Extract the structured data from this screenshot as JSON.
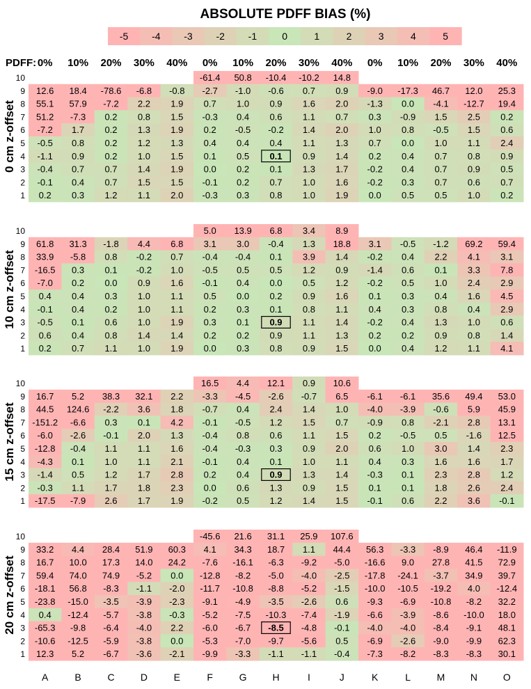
{
  "chart_data": {
    "type": "heatmap",
    "title": "ABSOLUTE PDFF BIAS (%)",
    "colors": {
      "min": "#ffb4b4",
      "mid": "#c8e6b8",
      "max": "#ffb4b4"
    },
    "color_scale": {
      "ticks": [
        "-5",
        "-4",
        "-3",
        "-2",
        "-1",
        "0",
        "1",
        "2",
        "3",
        "4",
        "5"
      ],
      "range": [
        -5,
        5
      ]
    },
    "pdff_label": "PDFF:",
    "pdff_values": [
      "0%",
      "10%",
      "20%",
      "30%",
      "40%",
      "0%",
      "10%",
      "20%",
      "30%",
      "40%",
      "0%",
      "10%",
      "20%",
      "30%",
      "40%"
    ],
    "columns": [
      "A",
      "B",
      "C",
      "D",
      "E",
      "F",
      "G",
      "H",
      "I",
      "J",
      "K",
      "L",
      "M",
      "N",
      "O"
    ],
    "row_labels": [
      "10",
      "9",
      "8",
      "7",
      "6",
      "5",
      "4",
      "3",
      "2",
      "1"
    ],
    "panels": [
      {
        "ylabel": "0 cm z-offset",
        "highlight_label": "0.1",
        "values": [
          [
            null,
            null,
            null,
            null,
            null,
            -61.4,
            50.8,
            -10.4,
            -10.2,
            14.8,
            null,
            null,
            null,
            null,
            null
          ],
          [
            12.6,
            18.4,
            -78.6,
            -6.8,
            -0.8,
            -2.7,
            -1.0,
            -0.6,
            0.7,
            0.9,
            -9.0,
            -17.3,
            46.7,
            12.0,
            25.3
          ],
          [
            55.1,
            57.9,
            -7.2,
            2.2,
            1.9,
            0.7,
            1.0,
            0.9,
            1.6,
            2.0,
            -1.3,
            0.0,
            -4.1,
            -12.7,
            19.4
          ],
          [
            51.2,
            -7.3,
            0.2,
            0.8,
            1.5,
            -0.3,
            0.4,
            0.6,
            1.1,
            0.7,
            0.3,
            -0.9,
            1.5,
            2.5,
            0.2
          ],
          [
            -7.2,
            1.7,
            0.2,
            1.3,
            1.9,
            0.2,
            -0.5,
            -0.2,
            1.4,
            2.0,
            1.0,
            0.8,
            -0.5,
            1.5,
            0.6
          ],
          [
            -0.5,
            0.8,
            0.2,
            1.2,
            1.3,
            0.4,
            0.4,
            0.4,
            1.1,
            1.3,
            0.7,
            0.0,
            1.0,
            1.1,
            2.4
          ],
          [
            -1.1,
            0.9,
            0.2,
            1.0,
            1.5,
            0.1,
            0.5,
            0.1,
            0.9,
            1.4,
            0.2,
            0.4,
            0.7,
            0.8,
            0.9
          ],
          [
            -0.4,
            0.7,
            0.7,
            1.4,
            1.9,
            0.0,
            0.2,
            0.1,
            1.3,
            1.7,
            -0.2,
            0.4,
            0.7,
            0.9,
            0.5
          ],
          [
            -0.1,
            0.4,
            0.7,
            1.5,
            1.5,
            -0.1,
            0.2,
            0.7,
            1.0,
            1.6,
            -0.2,
            0.3,
            0.7,
            0.6,
            0.7
          ],
          [
            0.2,
            0.3,
            1.2,
            1.1,
            2.0,
            -0.3,
            0.3,
            0.8,
            1.0,
            1.9,
            0.0,
            0.5,
            0.5,
            1.0,
            0.2
          ]
        ]
      },
      {
        "ylabel": "10 cm z-offset",
        "highlight_label": "0.9",
        "values": [
          [
            null,
            null,
            null,
            null,
            null,
            5.0,
            13.9,
            6.8,
            3.4,
            8.9,
            null,
            null,
            null,
            null,
            null
          ],
          [
            61.8,
            31.3,
            -1.8,
            4.4,
            6.8,
            3.1,
            3.0,
            -0.4,
            1.3,
            18.8,
            3.1,
            -0.5,
            -1.2,
            69.2,
            59.4
          ],
          [
            33.9,
            -5.8,
            0.8,
            -0.2,
            0.7,
            -0.4,
            -0.4,
            0.1,
            3.9,
            1.4,
            -0.2,
            0.4,
            2.2,
            4.1,
            3.1
          ],
          [
            -16.5,
            0.3,
            0.1,
            -0.2,
            1.0,
            -0.5,
            0.5,
            0.5,
            1.2,
            0.9,
            -1.4,
            0.6,
            0.1,
            3.3,
            7.8
          ],
          [
            -7.0,
            0.2,
            0.0,
            0.9,
            1.6,
            -0.1,
            0.4,
            0.0,
            0.5,
            1.2,
            -0.2,
            0.5,
            1.0,
            2.4,
            2.9
          ],
          [
            0.4,
            0.4,
            0.3,
            1.0,
            1.1,
            0.5,
            0.0,
            0.2,
            0.9,
            1.6,
            0.1,
            0.3,
            0.4,
            1.6,
            4.5
          ],
          [
            -0.1,
            0.4,
            0.2,
            1.0,
            1.1,
            0.2,
            0.3,
            0.1,
            0.8,
            1.1,
            0.4,
            0.3,
            0.8,
            0.4,
            2.9
          ],
          [
            -0.5,
            0.1,
            0.6,
            1.0,
            1.9,
            0.3,
            0.1,
            0.9,
            1.1,
            1.4,
            -0.2,
            0.4,
            1.3,
            1.0,
            0.6
          ],
          [
            0.6,
            0.4,
            0.8,
            1.4,
            1.4,
            0.2,
            0.2,
            0.9,
            1.1,
            1.3,
            0.2,
            0.2,
            0.9,
            0.8,
            1.4
          ],
          [
            0.2,
            0.7,
            1.1,
            1.0,
            1.9,
            0.0,
            0.3,
            0.8,
            0.9,
            1.5,
            0.0,
            0.4,
            1.2,
            1.1,
            4.1
          ]
        ]
      },
      {
        "ylabel": "15 cm z-offset",
        "highlight_label": "0.9",
        "values": [
          [
            null,
            null,
            null,
            null,
            null,
            16.5,
            4.4,
            12.1,
            0.9,
            10.6,
            null,
            null,
            null,
            null,
            null
          ],
          [
            16.7,
            5.2,
            38.3,
            32.1,
            2.2,
            -3.3,
            -4.5,
            -2.6,
            -0.7,
            6.5,
            -6.1,
            -6.1,
            35.6,
            49.4,
            53.0
          ],
          [
            44.5,
            124.6,
            -2.2,
            3.6,
            1.8,
            -0.7,
            0.4,
            2.4,
            1.4,
            1.0,
            -4.0,
            -3.9,
            -0.6,
            5.9,
            45.9
          ],
          [
            -151.2,
            -6.6,
            0.3,
            0.1,
            4.2,
            -0.1,
            -0.5,
            1.2,
            1.5,
            0.7,
            -0.9,
            0.8,
            -2.1,
            2.8,
            13.1
          ],
          [
            -6.0,
            -2.6,
            -0.1,
            2.0,
            1.3,
            -0.4,
            0.8,
            0.6,
            1.1,
            1.5,
            0.2,
            -0.5,
            0.5,
            -1.6,
            12.5
          ],
          [
            -12.8,
            -0.4,
            1.1,
            1.1,
            1.6,
            -0.4,
            -0.3,
            0.3,
            0.9,
            2.0,
            0.6,
            1.0,
            3.0,
            1.4,
            2.3
          ],
          [
            -4.3,
            0.1,
            1.0,
            1.1,
            2.1,
            -0.1,
            0.4,
            0.1,
            1.0,
            1.1,
            0.4,
            0.3,
            1.6,
            1.6,
            1.7
          ],
          [
            -1.4,
            0.5,
            1.2,
            1.7,
            2.8,
            0.2,
            0.4,
            0.9,
            1.3,
            1.4,
            -0.3,
            0.1,
            2.3,
            2.8,
            1.2
          ],
          [
            -0.3,
            1.1,
            1.7,
            1.8,
            2.3,
            0.0,
            0.6,
            1.3,
            0.9,
            1.5,
            0.1,
            0.1,
            1.8,
            2.6,
            2.4
          ],
          [
            -17.5,
            -7.9,
            2.6,
            1.7,
            1.9,
            -0.2,
            0.5,
            1.2,
            1.4,
            1.5,
            -0.1,
            0.6,
            2.2,
            3.6,
            -0.1
          ]
        ]
      },
      {
        "ylabel": "20 cm z-offset",
        "highlight_label": "-8.5",
        "values": [
          [
            null,
            null,
            null,
            null,
            null,
            -45.6,
            21.6,
            31.1,
            25.9,
            107.6,
            null,
            null,
            null,
            null,
            null
          ],
          [
            33.2,
            4.4,
            28.4,
            51.9,
            60.3,
            4.1,
            34.3,
            18.7,
            1.1,
            44.4,
            56.3,
            -3.3,
            -8.9,
            46.4,
            -11.9
          ],
          [
            16.7,
            10.0,
            17.3,
            14.0,
            24.2,
            -7.6,
            -16.1,
            -6.3,
            -9.2,
            -5.0,
            -16.6,
            9.0,
            27.8,
            41.5,
            72.9
          ],
          [
            59.4,
            74.0,
            74.9,
            -5.2,
            0.0,
            -12.8,
            -8.2,
            -5.0,
            -4.0,
            -2.5,
            -17.8,
            -24.1,
            -3.7,
            34.9,
            39.7
          ],
          [
            -18.1,
            56.8,
            -8.3,
            -1.1,
            -2.0,
            -11.7,
            -10.8,
            -8.8,
            -5.2,
            -1.5,
            -10.0,
            -10.5,
            -19.2,
            4.0,
            -12.4
          ],
          [
            -23.8,
            -15.0,
            -3.5,
            -3.9,
            -2.3,
            -9.1,
            -4.9,
            -3.5,
            -2.6,
            0.6,
            -9.3,
            -6.9,
            -10.8,
            -8.2,
            32.2
          ],
          [
            0.4,
            -12.4,
            -5.7,
            -3.8,
            -0.3,
            -5.2,
            -7.5,
            -10.3,
            -7.4,
            -1.9,
            -6.6,
            -3.9,
            -8.6,
            -10.0,
            18.0
          ],
          [
            -65.3,
            -9.8,
            -6.4,
            -4.0,
            2.2,
            -6.0,
            -6.7,
            -8.5,
            -4.8,
            -0.1,
            -4.0,
            -4.0,
            -8.4,
            -9.1,
            48.1
          ],
          [
            -10.6,
            -12.5,
            -5.9,
            -3.8,
            0.0,
            -5.3,
            -7.0,
            -9.7,
            -5.6,
            0.5,
            -6.9,
            -2.6,
            -9.0,
            -9.9,
            62.3
          ],
          [
            12.3,
            5.2,
            -6.7,
            -3.6,
            -2.1,
            -9.9,
            -3.3,
            -1.1,
            -1.1,
            -0.4,
            -7.3,
            -8.2,
            -8.3,
            -8.3,
            30.1
          ]
        ]
      }
    ]
  }
}
